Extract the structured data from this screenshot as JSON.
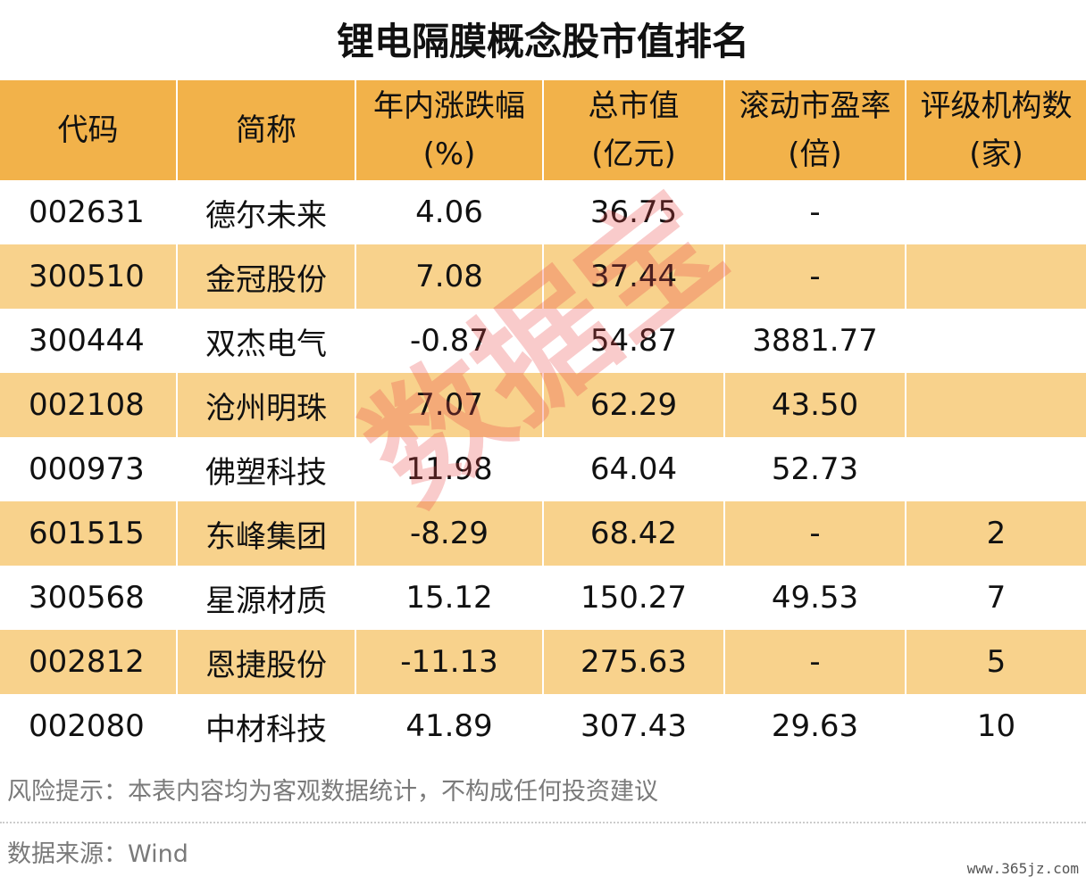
{
  "title": "锂电隔膜概念股市值排名",
  "headers": [
    {
      "line1": "代码",
      "line2": ""
    },
    {
      "line1": "简称",
      "line2": ""
    },
    {
      "line1": "年内涨跌幅",
      "line2": "(%)"
    },
    {
      "line1": "总市值",
      "line2": "(亿元)"
    },
    {
      "line1": "滚动市盈率",
      "line2": "(倍)"
    },
    {
      "line1": "评级机构数",
      "line2": "(家)"
    }
  ],
  "rows": [
    {
      "code": "002631",
      "name": "德尔未来",
      "change": "4.06",
      "cap": "36.75",
      "pe": "-",
      "ratings": ""
    },
    {
      "code": "300510",
      "name": "金冠股份",
      "change": "7.08",
      "cap": "37.44",
      "pe": "-",
      "ratings": ""
    },
    {
      "code": "300444",
      "name": "双杰电气",
      "change": "-0.87",
      "cap": "54.87",
      "pe": "3881.77",
      "ratings": ""
    },
    {
      "code": "002108",
      "name": "沧州明珠",
      "change": "7.07",
      "cap": "62.29",
      "pe": "43.50",
      "ratings": ""
    },
    {
      "code": "000973",
      "name": "佛塑科技",
      "change": "11.98",
      "cap": "64.04",
      "pe": "52.73",
      "ratings": ""
    },
    {
      "code": "601515",
      "name": "东峰集团",
      "change": "-8.29",
      "cap": "68.42",
      "pe": "-",
      "ratings": "2"
    },
    {
      "code": "300568",
      "name": "星源材质",
      "change": "15.12",
      "cap": "150.27",
      "pe": "49.53",
      "ratings": "7"
    },
    {
      "code": "002812",
      "name": "恩捷股份",
      "change": "-11.13",
      "cap": "275.63",
      "pe": "-",
      "ratings": "5"
    },
    {
      "code": "002080",
      "name": "中材科技",
      "change": "41.89",
      "cap": "307.43",
      "pe": "29.63",
      "ratings": "10"
    }
  ],
  "watermark": "数据宝",
  "risk_note": "风险提示：本表内容均为客观数据统计，不构成任何投资建议",
  "source_note": "数据来源：Wind",
  "site": "www.365jz.com",
  "colors": {
    "header_bg": "#f2b24a",
    "alt_row_bg": "#f8d28c",
    "watermark": "#e84646"
  }
}
